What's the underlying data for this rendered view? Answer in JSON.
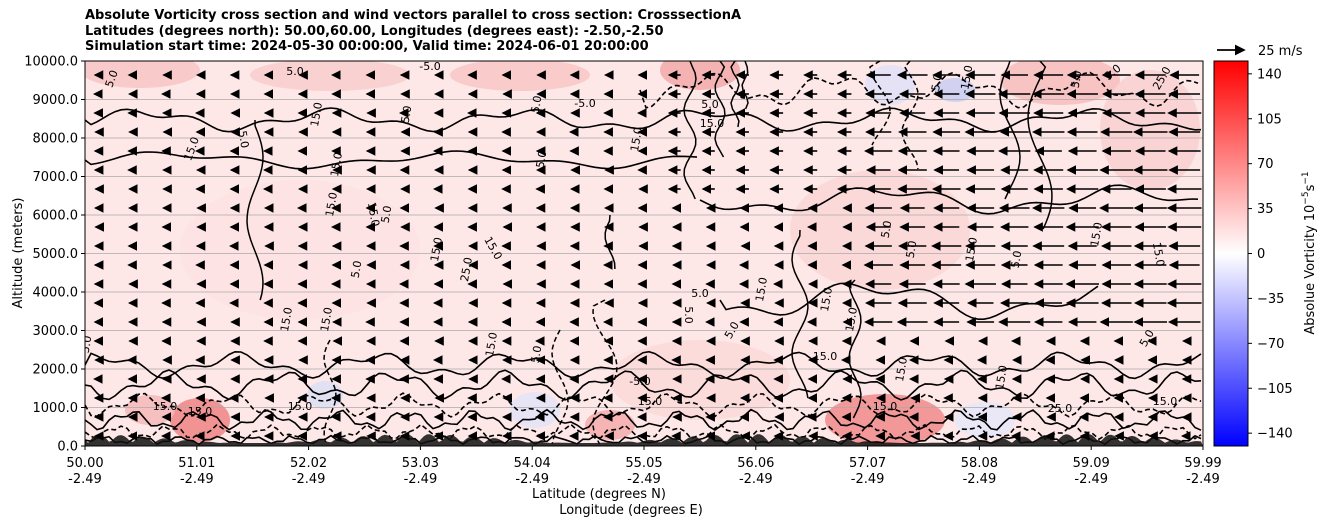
{
  "chart_data": {
    "type": "heatmap",
    "title_lines": [
      "Absolute Vorticity cross section and wind vectors parallel to cross section: CrosssectionA",
      "Latitudes (degrees north): 50.00,60.00, Longitudes (degrees east): -2.50,-2.50",
      "Simulation start time: 2024-05-30 00:00:00, Valid time: 2024-06-01 20:00:00"
    ],
    "ylabel": "Altitude (meters)",
    "xlabel_lines": [
      "Latitude (degrees N)",
      "Longitude (degrees E)"
    ],
    "ylim": [
      0,
      10000
    ],
    "y_ticks": [
      "0.0",
      "1000.0",
      "2000.0",
      "3000.0",
      "4000.0",
      "5000.0",
      "6000.0",
      "7000.0",
      "8000.0",
      "9000.0",
      "10000.0"
    ],
    "x_ticks": [
      {
        "lat": "50.00",
        "lon": "-2.49"
      },
      {
        "lat": "51.01",
        "lon": "-2.49"
      },
      {
        "lat": "52.02",
        "lon": "-2.49"
      },
      {
        "lat": "53.03",
        "lon": "-2.49"
      },
      {
        "lat": "54.04",
        "lon": "-2.49"
      },
      {
        "lat": "55.05",
        "lon": "-2.49"
      },
      {
        "lat": "56.06",
        "lon": "-2.49"
      },
      {
        "lat": "57.07",
        "lon": "-2.49"
      },
      {
        "lat": "58.08",
        "lon": "-2.49"
      },
      {
        "lat": "59.09",
        "lon": "-2.49"
      },
      {
        "lat": "59.99",
        "lon": "-2.49"
      }
    ],
    "grid": "horizontal",
    "colorbar": {
      "label": "Absolue Vorticity 10$^{-5}$s$^{-1}$",
      "label_display": "Absolue Vorticity 10",
      "label_sup1": "−5",
      "label_mid": "s",
      "label_sup2": "−1",
      "range": [
        -150,
        150
      ],
      "ticks": [
        "140",
        "105",
        "70",
        "35",
        "0",
        "−35",
        "−70",
        "−105",
        "−140"
      ],
      "tick_values": [
        140,
        105,
        70,
        35,
        0,
        -35,
        -70,
        -105,
        -140
      ],
      "cmap": "bwr"
    },
    "quiver_key": {
      "label": "25 m/s",
      "speed": 25
    },
    "contour_labels": [
      "5.0",
      "15.0",
      "25.0",
      "-5.0",
      "-15.0"
    ]
  }
}
